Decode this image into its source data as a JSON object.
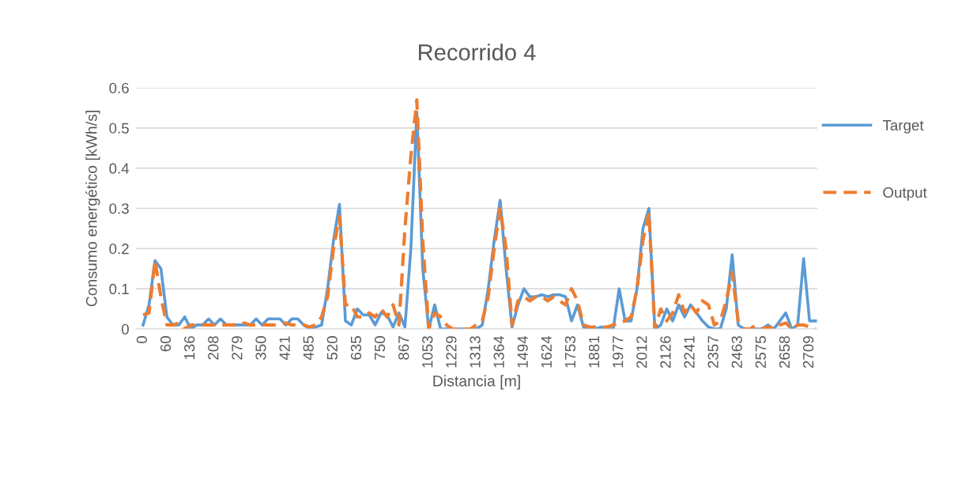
{
  "chart_data": {
    "type": "line",
    "title": "Recorrido 4",
    "xlabel": "Distancia [m]",
    "ylabel": "Consumo energético [kWh/s]",
    "categories": [
      "0",
      null,
      null,
      null,
      "60",
      null,
      null,
      null,
      "136",
      null,
      null,
      null,
      "208",
      null,
      null,
      null,
      "279",
      null,
      null,
      null,
      "350",
      null,
      null,
      null,
      "421",
      null,
      null,
      null,
      "485",
      null,
      null,
      null,
      "520",
      null,
      null,
      null,
      "635",
      null,
      null,
      null,
      "750",
      null,
      null,
      null,
      "867",
      null,
      null,
      null,
      "1053",
      null,
      null,
      null,
      "1229",
      null,
      null,
      null,
      "1313",
      null,
      null,
      null,
      "1364",
      null,
      null,
      null,
      "1494",
      null,
      null,
      null,
      "1624",
      null,
      null,
      null,
      "1753",
      null,
      null,
      null,
      "1881",
      null,
      null,
      null,
      "1977",
      null,
      null,
      null,
      "2012",
      null,
      null,
      null,
      "2126",
      null,
      null,
      null,
      "2241",
      null,
      null,
      null,
      "2357",
      null,
      null,
      null,
      "2463",
      null,
      null,
      null,
      "2575",
      null,
      null,
      null,
      "2658",
      null,
      null,
      null,
      "2709",
      null
    ],
    "series": [
      {
        "name": "Target",
        "color": "#5b9bd5",
        "line_style": "solid",
        "values": [
          0.01,
          0.06,
          0.17,
          0.15,
          0.03,
          0.01,
          0.01,
          0.03,
          0.0,
          0.01,
          0.01,
          0.025,
          0.01,
          0.025,
          0.01,
          0.01,
          0.01,
          0.01,
          0.01,
          0.025,
          0.01,
          0.025,
          0.025,
          0.025,
          0.01,
          0.025,
          0.025,
          0.01,
          0.0,
          0.005,
          0.01,
          0.1,
          0.22,
          0.31,
          0.02,
          0.01,
          0.05,
          0.035,
          0.035,
          0.01,
          0.04,
          0.035,
          0.005,
          0.04,
          0.005,
          0.2,
          0.54,
          0.15,
          0.0,
          0.06,
          0.0,
          0.0,
          0.0,
          0.0,
          0.0,
          0.0,
          0.0,
          0.01,
          0.1,
          0.22,
          0.32,
          0.15,
          0.005,
          0.06,
          0.1,
          0.08,
          0.08,
          0.085,
          0.08,
          0.085,
          0.085,
          0.08,
          0.02,
          0.06,
          0.005,
          0.0,
          0.0,
          0.005,
          0.0,
          0.0,
          0.1,
          0.02,
          0.02,
          0.1,
          0.25,
          0.3,
          0.0,
          0.01,
          0.05,
          0.02,
          0.06,
          0.03,
          0.06,
          0.04,
          0.02,
          0.005,
          0.0,
          0.0,
          0.05,
          0.185,
          0.01,
          0.0,
          0.0,
          0.0,
          0.0,
          0.01,
          0.0,
          0.02,
          0.04,
          0.0,
          0.01,
          0.175,
          0.02,
          0.02
        ]
      },
      {
        "name": "Output",
        "color": "#ed7d31",
        "line_style": "dashed",
        "values": [
          0.035,
          0.04,
          0.17,
          0.08,
          0.01,
          0.01,
          0.015,
          0.0,
          0.01,
          0.01,
          0.01,
          0.01,
          0.01,
          0.01,
          0.01,
          0.01,
          0.01,
          0.015,
          0.01,
          0.01,
          0.01,
          0.01,
          0.01,
          0.01,
          0.015,
          0.01,
          0.01,
          0.01,
          0.005,
          0.01,
          0.03,
          0.08,
          0.2,
          0.28,
          0.06,
          0.06,
          0.03,
          0.03,
          0.04,
          0.03,
          0.05,
          0.03,
          0.06,
          0.01,
          0.25,
          0.43,
          0.57,
          0.22,
          0.0,
          0.04,
          0.03,
          0.01,
          0.0,
          0.0,
          0.0,
          0.0,
          0.01,
          0.02,
          0.08,
          0.2,
          0.3,
          0.2,
          0.01,
          0.07,
          0.08,
          0.07,
          0.08,
          0.08,
          0.07,
          0.08,
          0.07,
          0.06,
          0.1,
          0.07,
          0.01,
          0.005,
          0.005,
          0.005,
          0.005,
          0.01,
          0.015,
          0.02,
          0.03,
          0.1,
          0.22,
          0.29,
          0.0,
          0.05,
          0.02,
          0.04,
          0.085,
          0.04,
          0.06,
          0.04,
          0.07,
          0.06,
          0.01,
          0.02,
          0.07,
          0.14,
          0.02,
          0.0,
          0.0,
          0.01,
          0.0,
          0.005,
          0.0,
          0.01,
          0.015,
          0.0,
          0.01,
          0.01,
          0.005,
          0.0
        ]
      }
    ],
    "ylim": [
      0,
      0.6
    ],
    "yticks": [
      0,
      0.1,
      0.2,
      0.3,
      0.4,
      0.5,
      0.6
    ],
    "grid": "y",
    "legend": "right",
    "marker": "none"
  }
}
